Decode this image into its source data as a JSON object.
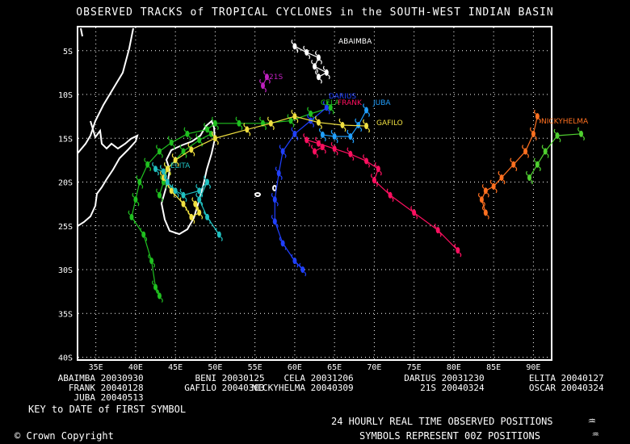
{
  "title": "OBSERVED TRACKS of TROPICAL CYCLONES in the SOUTH-WEST INDIAN BASIN",
  "lat_labels": [
    "5S",
    "10S",
    "15S",
    "20S",
    "25S",
    "30S",
    "35S",
    "40S"
  ],
  "lon_labels": [
    "35E",
    "40E",
    "45E",
    "50E",
    "55E",
    "60E",
    "65E",
    "70E",
    "75E",
    "80E",
    "85E",
    "90E"
  ],
  "storm_labels": [
    {
      "text": "ABAIMBA",
      "color": "#ffffff"
    },
    {
      "text": "21S",
      "color": "#c020c0"
    },
    {
      "text": "DARIUS",
      "color": "#2040ff"
    },
    {
      "text": "CELA",
      "color": "#20c020"
    },
    {
      "text": "FRANK",
      "color": "#ff1060"
    },
    {
      "text": "JUBA",
      "color": "#20a0ff"
    },
    {
      "text": "GAFILO",
      "color": "#f0e040"
    },
    {
      "text": "NICKYHELMA",
      "color": "#ff7020"
    },
    {
      "text": "ELITA",
      "color": "#20c0c0"
    }
  ],
  "key_items": [
    {
      "name": "ABAIMBA",
      "date": "20030930"
    },
    {
      "name": "BENI",
      "date": "20030125"
    },
    {
      "name": "CELA",
      "date": "20031206"
    },
    {
      "name": "DARIUS",
      "date": "20031230"
    },
    {
      "name": "ELITA",
      "date": "20040127"
    },
    {
      "name": "FRANK",
      "date": "20040128"
    },
    {
      "name": "GAFILO",
      "date": "20040303"
    },
    {
      "name": "NICKYHELMA",
      "date": "20040309"
    },
    {
      "name": "21S",
      "date": "20040324"
    },
    {
      "name": "OSCAR",
      "date": "20040324"
    },
    {
      "name": "JUBA",
      "date": "20040513"
    }
  ],
  "key_note": "KEY to DATE of FIRST SYMBOL",
  "legend_line1": "24 HOURLY REAL TIME OBSERVED POSITIONS",
  "legend_line2": "SYMBOLS REPRESENT 00Z POSITIONS",
  "copyright": "© Crown Copyright",
  "icon_name": "cyclone-symbol-icon",
  "tracks": [
    {
      "name": "CELA",
      "color": "#20c020",
      "points": [
        [
          64.5,
          -11.5
        ],
        [
          62,
          -12.2
        ],
        [
          59.5,
          -13.0
        ],
        [
          56,
          -13.3
        ],
        [
          53,
          -13.3
        ],
        [
          50,
          -13.3
        ],
        [
          49,
          -14
        ],
        [
          46.5,
          -14.5
        ],
        [
          44.5,
          -15.5
        ],
        [
          43,
          -16.5
        ],
        [
          41.5,
          -18
        ],
        [
          40.5,
          -20
        ],
        [
          40,
          -22
        ],
        [
          39.5,
          -24
        ],
        [
          41,
          -26
        ],
        [
          42,
          -29
        ],
        [
          42.5,
          -32
        ],
        [
          43,
          -33
        ]
      ]
    },
    {
      "name": "CELA-2",
      "color": "#20c020",
      "points": [
        [
          49.5,
          -14.5
        ],
        [
          48,
          -15.2
        ],
        [
          46,
          -16.5
        ],
        [
          44,
          -18.5
        ],
        [
          43.5,
          -20
        ],
        [
          43,
          -21.5
        ]
      ]
    },
    {
      "name": "DARIUS",
      "color": "#2040ff",
      "points": [
        [
          64,
          -11.5
        ],
        [
          62,
          -13
        ],
        [
          60,
          -14.5
        ],
        [
          58.5,
          -16.5
        ],
        [
          58,
          -19
        ],
        [
          57.5,
          -22
        ],
        [
          57.5,
          -24.5
        ],
        [
          58.5,
          -27
        ],
        [
          60,
          -29
        ],
        [
          61,
          -30
        ]
      ]
    },
    {
      "name": "FRANK",
      "color": "#ff1060",
      "points": [
        [
          61.5,
          -15.2
        ],
        [
          63,
          -15.6
        ],
        [
          65,
          -16.2
        ],
        [
          67,
          -16.8
        ],
        [
          69,
          -17.6
        ],
        [
          70.5,
          -18.5
        ],
        [
          70,
          -19.8
        ],
        [
          72,
          -21.5
        ],
        [
          75,
          -23.5
        ],
        [
          78,
          -25.5
        ],
        [
          80.5,
          -27.8
        ]
      ]
    },
    {
      "name": "FRANK-2",
      "color": "#ff1060",
      "points": [
        [
          63.5,
          -16
        ],
        [
          62.5,
          -16.5
        ]
      ]
    },
    {
      "name": "JUBA",
      "color": "#20a0ff",
      "points": [
        [
          69,
          -11.8
        ],
        [
          68,
          -13.5
        ],
        [
          67,
          -14.8
        ],
        [
          65,
          -14.8
        ],
        [
          63.5,
          -14.6
        ]
      ]
    },
    {
      "name": "GAFILO",
      "color": "#f0e040",
      "points": [
        [
          69,
          -13.6
        ],
        [
          66,
          -13.5
        ],
        [
          63,
          -13.2
        ],
        [
          60,
          -12.5
        ],
        [
          57,
          -13.3
        ],
        [
          54,
          -14.0
        ],
        [
          50,
          -15.0
        ],
        [
          47,
          -16.3
        ],
        [
          45,
          -17.5
        ],
        [
          44,
          -18.5
        ],
        [
          43.5,
          -19.5
        ],
        [
          44.5,
          -21
        ],
        [
          46,
          -22.5
        ],
        [
          47,
          -24
        ],
        [
          48,
          -23.5
        ],
        [
          47.5,
          -22.5
        ]
      ]
    },
    {
      "name": "ELITA",
      "color": "#20c0c0",
      "points": [
        [
          42.5,
          -18.5
        ],
        [
          43.5,
          -18.8
        ],
        [
          44,
          -20
        ],
        [
          45,
          -21
        ],
        [
          46,
          -21.5
        ],
        [
          48,
          -21
        ],
        [
          49,
          -20
        ],
        [
          48,
          -22
        ],
        [
          49,
          -24
        ],
        [
          50.5,
          -26
        ]
      ]
    },
    {
      "name": "NICKYHELMA",
      "color": "#ff7020",
      "points": [
        [
          90.5,
          -12.5
        ],
        [
          90,
          -14.5
        ],
        [
          89,
          -16.5
        ],
        [
          87.5,
          -18
        ],
        [
          86,
          -19.5
        ],
        [
          85,
          -20.5
        ],
        [
          84,
          -21
        ],
        [
          83.5,
          -22
        ],
        [
          84,
          -23.5
        ]
      ]
    },
    {
      "name": "OSCAR",
      "color": "#50d030",
      "points": [
        [
          96,
          -14.5
        ],
        [
          93,
          -14.7
        ],
        [
          91.5,
          -16.5
        ],
        [
          90.5,
          -18
        ],
        [
          89.5,
          -19.5
        ]
      ]
    },
    {
      "name": "21S",
      "color": "#c020c0",
      "points": [
        [
          56.5,
          -8
        ],
        [
          56,
          -9
        ]
      ]
    },
    {
      "name": "ABAIMBA",
      "color": "#ffffff",
      "points": [
        [
          60,
          -4.5
        ],
        [
          61.5,
          -5.2
        ],
        [
          63,
          -5.8
        ],
        [
          62.5,
          -6.8
        ],
        [
          64,
          -7.5
        ],
        [
          63,
          -8
        ]
      ]
    }
  ]
}
